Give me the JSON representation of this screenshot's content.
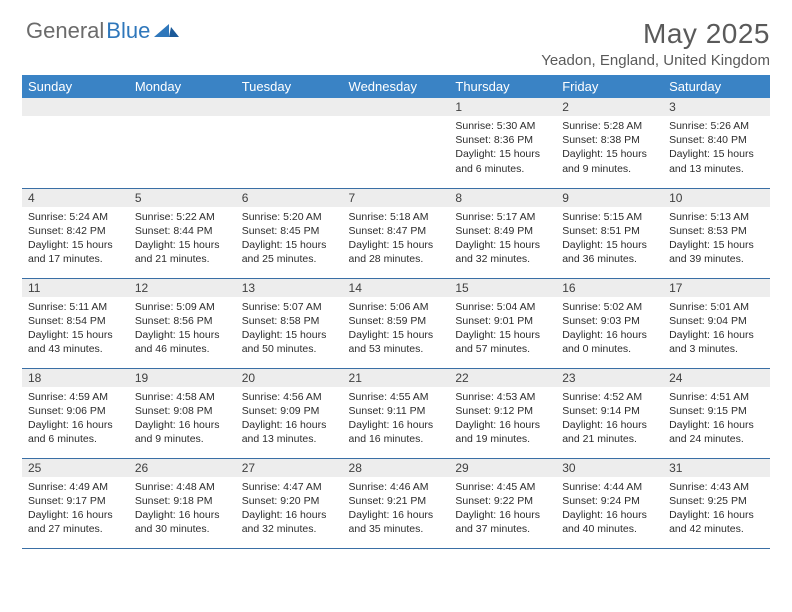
{
  "brand": {
    "part1": "General",
    "part2": "Blue"
  },
  "title": "May 2025",
  "location": "Yeadon, England, United Kingdom",
  "colors": {
    "header_bg": "#3a83c5",
    "header_text": "#ffffff",
    "datebar_bg": "#ededed",
    "row_border": "#3a6fa5",
    "text": "#2c2c2c",
    "title_text": "#5a5a5a",
    "logo_gray": "#6b6b6b",
    "logo_blue": "#2f77bb"
  },
  "weekdays": [
    "Sunday",
    "Monday",
    "Tuesday",
    "Wednesday",
    "Thursday",
    "Friday",
    "Saturday"
  ],
  "weeks": [
    [
      {
        "date": "",
        "sunrise": "",
        "sunset": "",
        "daylight": "",
        "empty": true
      },
      {
        "date": "",
        "sunrise": "",
        "sunset": "",
        "daylight": "",
        "empty": true
      },
      {
        "date": "",
        "sunrise": "",
        "sunset": "",
        "daylight": "",
        "empty": true
      },
      {
        "date": "",
        "sunrise": "",
        "sunset": "",
        "daylight": "",
        "empty": true
      },
      {
        "date": "1",
        "sunrise": "Sunrise: 5:30 AM",
        "sunset": "Sunset: 8:36 PM",
        "daylight": "Daylight: 15 hours and 6 minutes."
      },
      {
        "date": "2",
        "sunrise": "Sunrise: 5:28 AM",
        "sunset": "Sunset: 8:38 PM",
        "daylight": "Daylight: 15 hours and 9 minutes."
      },
      {
        "date": "3",
        "sunrise": "Sunrise: 5:26 AM",
        "sunset": "Sunset: 8:40 PM",
        "daylight": "Daylight: 15 hours and 13 minutes."
      }
    ],
    [
      {
        "date": "4",
        "sunrise": "Sunrise: 5:24 AM",
        "sunset": "Sunset: 8:42 PM",
        "daylight": "Daylight: 15 hours and 17 minutes."
      },
      {
        "date": "5",
        "sunrise": "Sunrise: 5:22 AM",
        "sunset": "Sunset: 8:44 PM",
        "daylight": "Daylight: 15 hours and 21 minutes."
      },
      {
        "date": "6",
        "sunrise": "Sunrise: 5:20 AM",
        "sunset": "Sunset: 8:45 PM",
        "daylight": "Daylight: 15 hours and 25 minutes."
      },
      {
        "date": "7",
        "sunrise": "Sunrise: 5:18 AM",
        "sunset": "Sunset: 8:47 PM",
        "daylight": "Daylight: 15 hours and 28 minutes."
      },
      {
        "date": "8",
        "sunrise": "Sunrise: 5:17 AM",
        "sunset": "Sunset: 8:49 PM",
        "daylight": "Daylight: 15 hours and 32 minutes."
      },
      {
        "date": "9",
        "sunrise": "Sunrise: 5:15 AM",
        "sunset": "Sunset: 8:51 PM",
        "daylight": "Daylight: 15 hours and 36 minutes."
      },
      {
        "date": "10",
        "sunrise": "Sunrise: 5:13 AM",
        "sunset": "Sunset: 8:53 PM",
        "daylight": "Daylight: 15 hours and 39 minutes."
      }
    ],
    [
      {
        "date": "11",
        "sunrise": "Sunrise: 5:11 AM",
        "sunset": "Sunset: 8:54 PM",
        "daylight": "Daylight: 15 hours and 43 minutes."
      },
      {
        "date": "12",
        "sunrise": "Sunrise: 5:09 AM",
        "sunset": "Sunset: 8:56 PM",
        "daylight": "Daylight: 15 hours and 46 minutes."
      },
      {
        "date": "13",
        "sunrise": "Sunrise: 5:07 AM",
        "sunset": "Sunset: 8:58 PM",
        "daylight": "Daylight: 15 hours and 50 minutes."
      },
      {
        "date": "14",
        "sunrise": "Sunrise: 5:06 AM",
        "sunset": "Sunset: 8:59 PM",
        "daylight": "Daylight: 15 hours and 53 minutes."
      },
      {
        "date": "15",
        "sunrise": "Sunrise: 5:04 AM",
        "sunset": "Sunset: 9:01 PM",
        "daylight": "Daylight: 15 hours and 57 minutes."
      },
      {
        "date": "16",
        "sunrise": "Sunrise: 5:02 AM",
        "sunset": "Sunset: 9:03 PM",
        "daylight": "Daylight: 16 hours and 0 minutes."
      },
      {
        "date": "17",
        "sunrise": "Sunrise: 5:01 AM",
        "sunset": "Sunset: 9:04 PM",
        "daylight": "Daylight: 16 hours and 3 minutes."
      }
    ],
    [
      {
        "date": "18",
        "sunrise": "Sunrise: 4:59 AM",
        "sunset": "Sunset: 9:06 PM",
        "daylight": "Daylight: 16 hours and 6 minutes."
      },
      {
        "date": "19",
        "sunrise": "Sunrise: 4:58 AM",
        "sunset": "Sunset: 9:08 PM",
        "daylight": "Daylight: 16 hours and 9 minutes."
      },
      {
        "date": "20",
        "sunrise": "Sunrise: 4:56 AM",
        "sunset": "Sunset: 9:09 PM",
        "daylight": "Daylight: 16 hours and 13 minutes."
      },
      {
        "date": "21",
        "sunrise": "Sunrise: 4:55 AM",
        "sunset": "Sunset: 9:11 PM",
        "daylight": "Daylight: 16 hours and 16 minutes."
      },
      {
        "date": "22",
        "sunrise": "Sunrise: 4:53 AM",
        "sunset": "Sunset: 9:12 PM",
        "daylight": "Daylight: 16 hours and 19 minutes."
      },
      {
        "date": "23",
        "sunrise": "Sunrise: 4:52 AM",
        "sunset": "Sunset: 9:14 PM",
        "daylight": "Daylight: 16 hours and 21 minutes."
      },
      {
        "date": "24",
        "sunrise": "Sunrise: 4:51 AM",
        "sunset": "Sunset: 9:15 PM",
        "daylight": "Daylight: 16 hours and 24 minutes."
      }
    ],
    [
      {
        "date": "25",
        "sunrise": "Sunrise: 4:49 AM",
        "sunset": "Sunset: 9:17 PM",
        "daylight": "Daylight: 16 hours and 27 minutes."
      },
      {
        "date": "26",
        "sunrise": "Sunrise: 4:48 AM",
        "sunset": "Sunset: 9:18 PM",
        "daylight": "Daylight: 16 hours and 30 minutes."
      },
      {
        "date": "27",
        "sunrise": "Sunrise: 4:47 AM",
        "sunset": "Sunset: 9:20 PM",
        "daylight": "Daylight: 16 hours and 32 minutes."
      },
      {
        "date": "28",
        "sunrise": "Sunrise: 4:46 AM",
        "sunset": "Sunset: 9:21 PM",
        "daylight": "Daylight: 16 hours and 35 minutes."
      },
      {
        "date": "29",
        "sunrise": "Sunrise: 4:45 AM",
        "sunset": "Sunset: 9:22 PM",
        "daylight": "Daylight: 16 hours and 37 minutes."
      },
      {
        "date": "30",
        "sunrise": "Sunrise: 4:44 AM",
        "sunset": "Sunset: 9:24 PM",
        "daylight": "Daylight: 16 hours and 40 minutes."
      },
      {
        "date": "31",
        "sunrise": "Sunrise: 4:43 AM",
        "sunset": "Sunset: 9:25 PM",
        "daylight": "Daylight: 16 hours and 42 minutes."
      }
    ]
  ]
}
